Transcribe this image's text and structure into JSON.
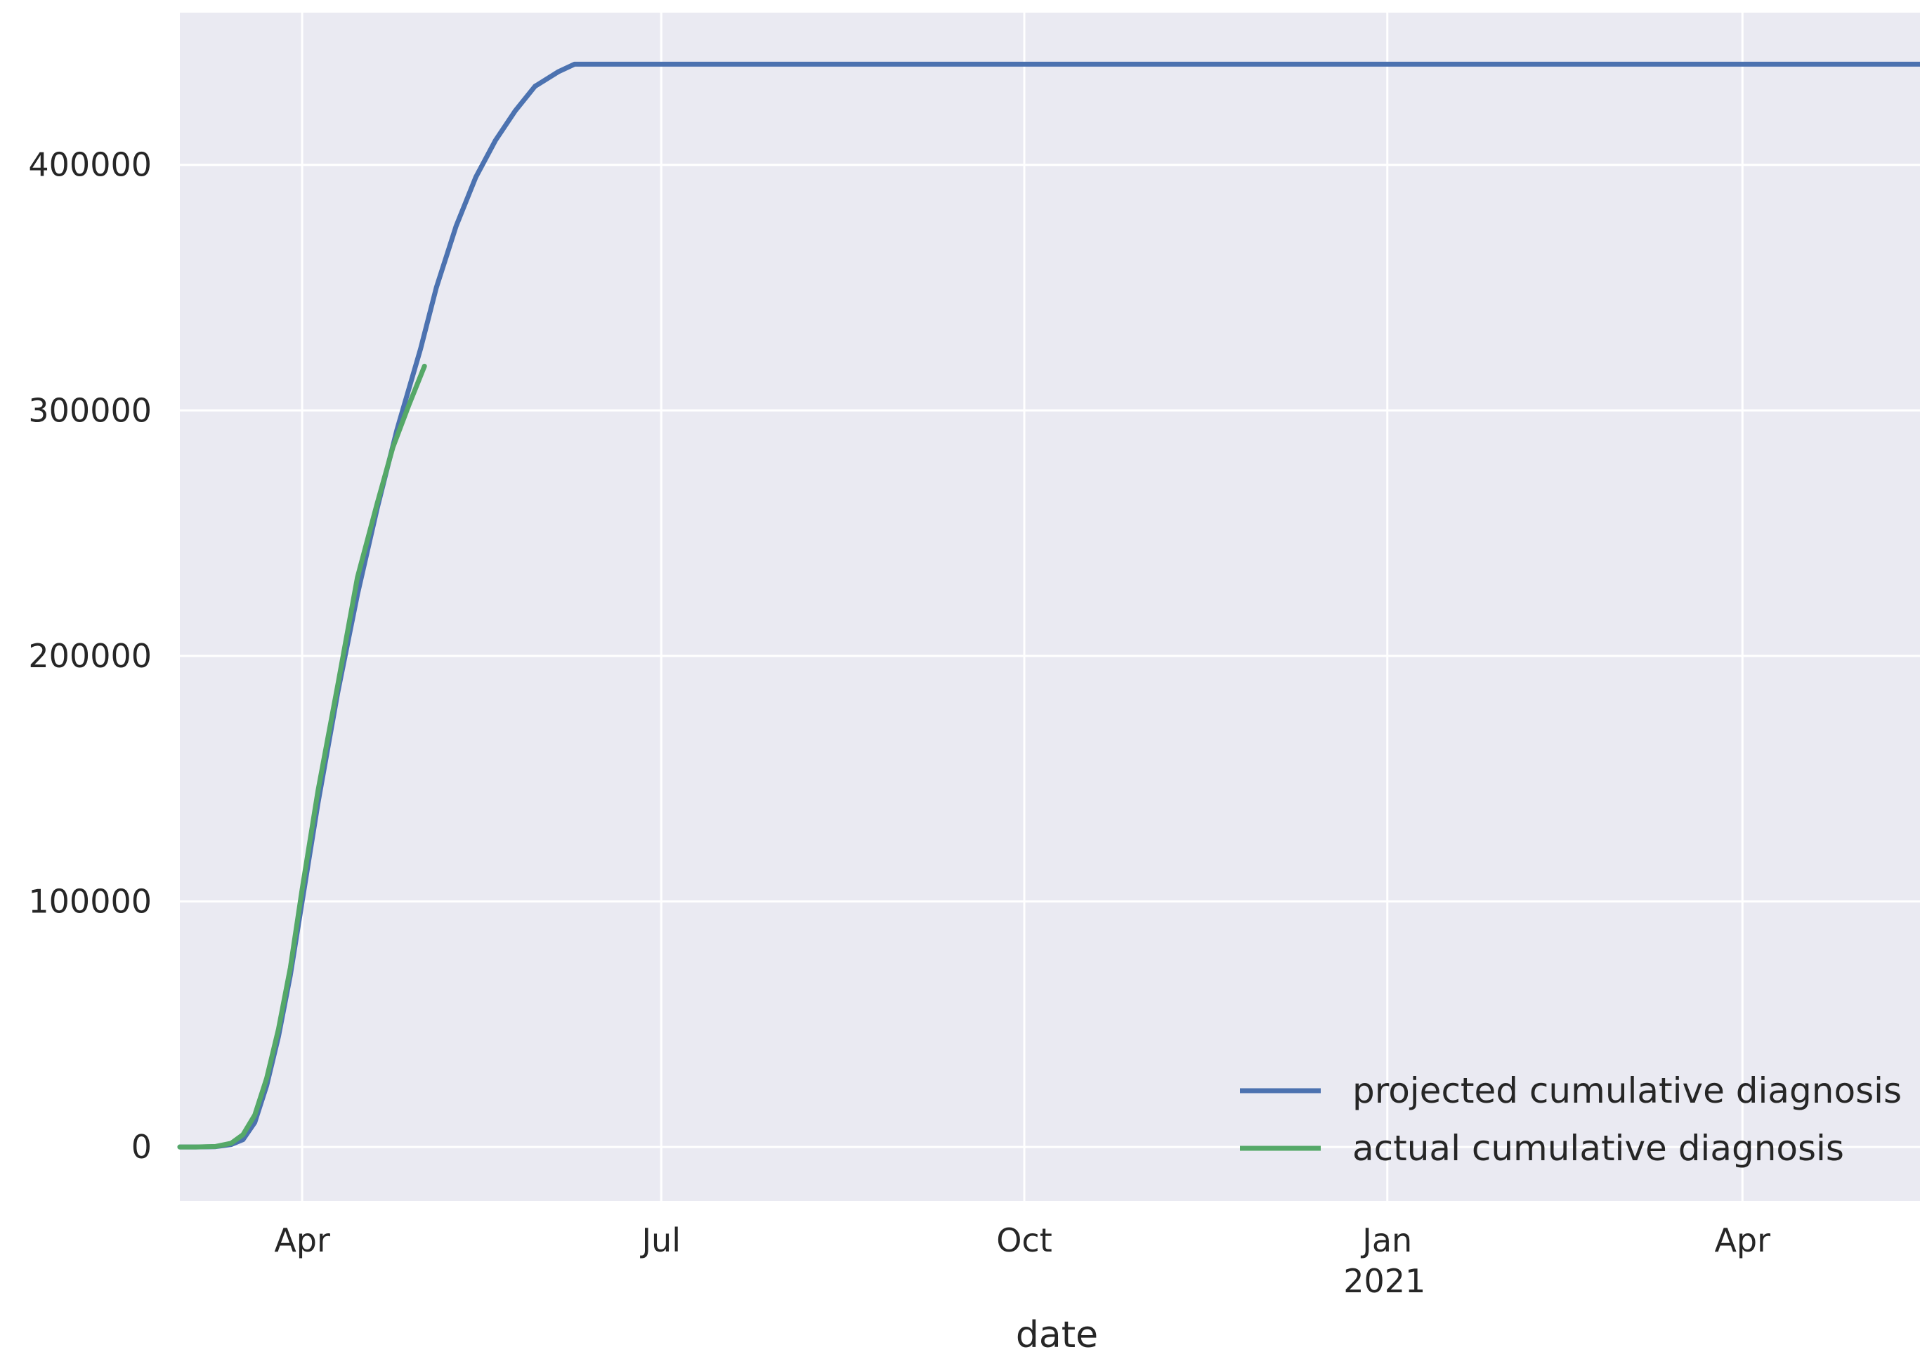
{
  "chart_data": {
    "type": "line",
    "title": "",
    "xlabel": "date",
    "ylabel": "",
    "x_type": "date",
    "xlim": [
      "2020-03-01",
      "2021-05-16"
    ],
    "ylim": [
      -22000,
      462000
    ],
    "grid": true,
    "legend_position": "lower-right",
    "background_color": "#eaeaf2",
    "grid_color": "#ffffff",
    "x_ticks": [
      {
        "date": "2020-04-01",
        "label": "Apr",
        "sublabel": ""
      },
      {
        "date": "2020-07-01",
        "label": "Jul",
        "sublabel": ""
      },
      {
        "date": "2020-10-01",
        "label": "Oct",
        "sublabel": ""
      },
      {
        "date": "2021-01-01",
        "label": "Jan",
        "sublabel": "2021"
      },
      {
        "date": "2021-04-01",
        "label": "Apr",
        "sublabel": ""
      }
    ],
    "y_ticks": [
      {
        "value": 0,
        "label": "0"
      },
      {
        "value": 100000,
        "label": "100000"
      },
      {
        "value": 200000,
        "label": "200000"
      },
      {
        "value": 300000,
        "label": "300000"
      },
      {
        "value": 400000,
        "label": "400000"
      }
    ],
    "series": [
      {
        "name": "projected cumulative diagnosis",
        "color": "#4c72b0",
        "points": [
          [
            "2020-03-01",
            0
          ],
          [
            "2020-03-05",
            0
          ],
          [
            "2020-03-10",
            100
          ],
          [
            "2020-03-14",
            1000
          ],
          [
            "2020-03-17",
            3000
          ],
          [
            "2020-03-20",
            10000
          ],
          [
            "2020-03-23",
            25000
          ],
          [
            "2020-03-26",
            45000
          ],
          [
            "2020-03-29",
            70000
          ],
          [
            "2020-04-01",
            100000
          ],
          [
            "2020-04-05",
            140000
          ],
          [
            "2020-04-10",
            185000
          ],
          [
            "2020-04-15",
            225000
          ],
          [
            "2020-04-20",
            260000
          ],
          [
            "2020-04-25",
            292000
          ],
          [
            "2020-05-01",
            325000
          ],
          [
            "2020-05-05",
            350000
          ],
          [
            "2020-05-10",
            375000
          ],
          [
            "2020-05-15",
            395000
          ],
          [
            "2020-05-20",
            410000
          ],
          [
            "2020-05-25",
            422000
          ],
          [
            "2020-05-30",
            432000
          ],
          [
            "2020-06-05",
            438000
          ],
          [
            "2020-06-09",
            441000
          ],
          [
            "2020-06-15",
            441000
          ],
          [
            "2020-09-01",
            441000
          ],
          [
            "2020-12-01",
            441000
          ],
          [
            "2021-03-01",
            441000
          ],
          [
            "2021-05-16",
            441000
          ]
        ]
      },
      {
        "name": "actual cumulative diagnosis",
        "color": "#55a868",
        "points": [
          [
            "2020-03-01",
            0
          ],
          [
            "2020-03-05",
            0
          ],
          [
            "2020-03-10",
            200
          ],
          [
            "2020-03-14",
            1500
          ],
          [
            "2020-03-17",
            5000
          ],
          [
            "2020-03-20",
            13000
          ],
          [
            "2020-03-23",
            28000
          ],
          [
            "2020-03-26",
            48000
          ],
          [
            "2020-03-29",
            73000
          ],
          [
            "2020-04-01",
            105000
          ],
          [
            "2020-04-05",
            145000
          ],
          [
            "2020-04-10",
            188000
          ],
          [
            "2020-04-15",
            232000
          ],
          [
            "2020-04-20",
            262000
          ],
          [
            "2020-04-24",
            285000
          ],
          [
            "2020-04-28",
            302000
          ],
          [
            "2020-05-02",
            318000
          ]
        ]
      }
    ]
  }
}
